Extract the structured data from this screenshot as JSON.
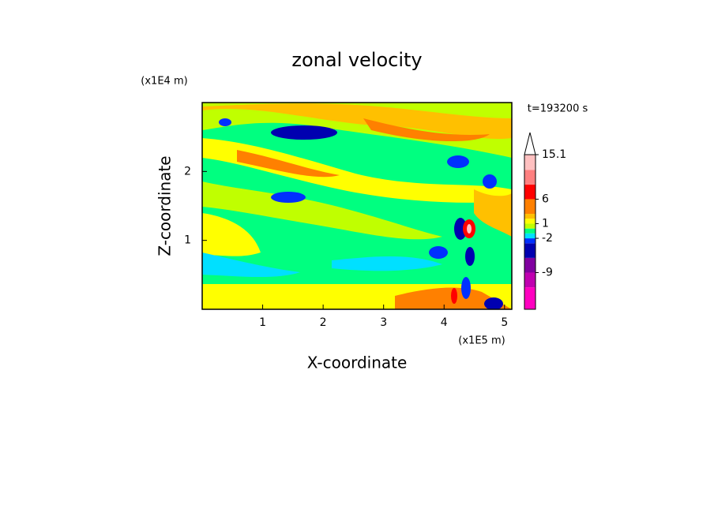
{
  "chart_data": {
    "type": "contour",
    "title": "zonal velocity",
    "x_label": "X-coordinate",
    "y_label": "Z-coordinate",
    "x_unit": "(x1E5 m)",
    "y_unit": "(x1E4 m)",
    "annotation": "t=193200 s",
    "xlim": [
      0,
      5.12
    ],
    "ylim": [
      0,
      3
    ],
    "xticks": [
      1,
      2,
      3,
      4,
      5
    ],
    "yticks": [
      1,
      2
    ],
    "colorbar": {
      "levels": [
        -16.5,
        -12,
        -9,
        -6,
        -3,
        -2,
        -1,
        0,
        1,
        2,
        3,
        6,
        9,
        12,
        15.1
      ],
      "colors": [
        "#ff00c0",
        "#c000b0",
        "#8000a0",
        "#0000b0",
        "#0030ff",
        "#00e0ff",
        "#00ff80",
        "#c0ff00",
        "#ffff00",
        "#ffc000",
        "#ff8000",
        "#ff0000",
        "#ff8080",
        "#ffc0c0"
      ],
      "ticks": [
        15.1,
        6,
        1,
        -2,
        -9
      ]
    }
  }
}
